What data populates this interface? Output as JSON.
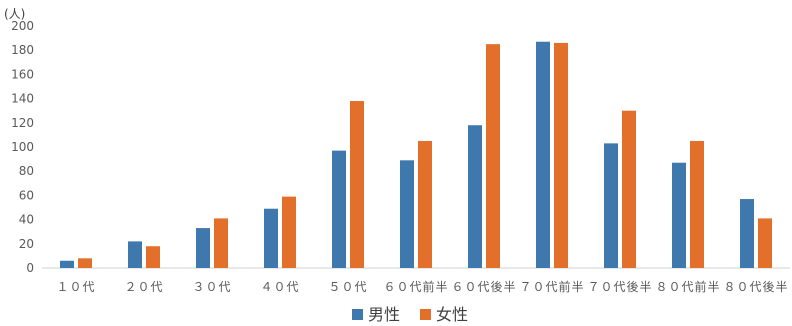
{
  "chart_data": {
    "type": "bar",
    "title": "",
    "xlabel": "",
    "ylabel": "(人)",
    "ylim": [
      0,
      200
    ],
    "yticks": [
      0,
      20,
      40,
      60,
      80,
      100,
      120,
      140,
      160,
      180,
      200
    ],
    "grid": false,
    "legend_position": "bottom",
    "categories": [
      "１０代",
      "２０代",
      "３０代",
      "４０代",
      "５０代",
      "６０代前半",
      "６０代後半",
      "７０代前半",
      "７０代後半",
      "８０代前半",
      "８０代後半"
    ],
    "series": [
      {
        "name": "男性",
        "color": "#3f78ad",
        "values": [
          6,
          22,
          33,
          49,
          97,
          89,
          118,
          187,
          103,
          87,
          57
        ]
      },
      {
        "name": "女性",
        "color": "#e2702a",
        "values": [
          8,
          18,
          41,
          59,
          138,
          105,
          185,
          186,
          130,
          105,
          41
        ]
      }
    ]
  }
}
